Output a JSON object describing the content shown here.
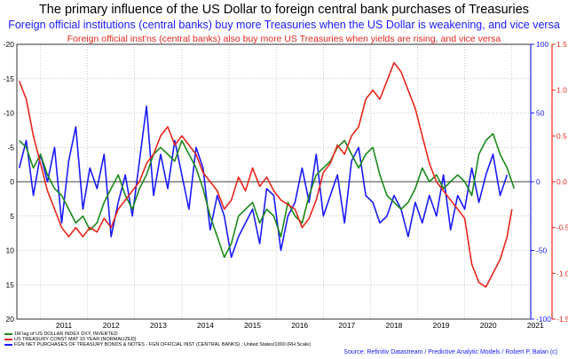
{
  "chart_data": {
    "type": "line",
    "title": "The primary influence of the US Dollar to foreign central bank purchases of Treasuries",
    "subtitle": "Foreign official institutions (central banks) buy more Treasuries when the US Dollar is weakening, and vice versa",
    "subtitle2": "Foreign official inst'ns (central banks) also buy more US Treasuries when yields are rising, and vice versa",
    "x_tick_labels": [
      "2011",
      "2012",
      "2013",
      "2014",
      "2015",
      "2016",
      "2017",
      "2018",
      "2019",
      "2020",
      "2021"
    ],
    "xlim": [
      2010.5,
      2021.4
    ],
    "left_axis": {
      "ticks": [
        -20,
        -15,
        -10,
        -5,
        0,
        5,
        10,
        15,
        20
      ],
      "ylim": [
        -20,
        20
      ],
      "inverted": true,
      "tick_labels": [
        "-20",
        "-15",
        "-10",
        "-5",
        "0",
        "5",
        "10",
        "15",
        "20"
      ]
    },
    "right_axis_blue": {
      "ticks": [
        100,
        50,
        0,
        -50,
        -100
      ],
      "ylim": [
        -100,
        100
      ],
      "color": "#1a1aff",
      "tick_labels": [
        "100",
        "50",
        "0",
        "-50",
        "-100"
      ]
    },
    "right_axis_red": {
      "ticks": [
        1.5,
        1,
        0.5,
        0,
        -0.5,
        -1,
        -1.5
      ],
      "ylim": [
        -1.5,
        1.5
      ],
      "color": "#e8251b",
      "tick_labels": [
        "1.5",
        "1.0",
        "0.5",
        "0.0",
        "-0.5",
        "-1.0",
        "-1.5"
      ]
    },
    "grid": true,
    "series": [
      {
        "name": "1M lag of US DOLLAR INDEX DXY, INVERTED",
        "color": "#1a8a1a",
        "axis": "left",
        "x": [
          2010.55,
          2010.7,
          2010.85,
          2011.0,
          2011.15,
          2011.3,
          2011.45,
          2011.6,
          2011.75,
          2011.9,
          2012.05,
          2012.2,
          2012.35,
          2012.5,
          2012.65,
          2012.8,
          2012.95,
          2013.1,
          2013.25,
          2013.4,
          2013.55,
          2013.7,
          2013.85,
          2014.0,
          2014.15,
          2014.3,
          2014.45,
          2014.6,
          2014.75,
          2014.9,
          2015.05,
          2015.2,
          2015.35,
          2015.5,
          2015.65,
          2015.8,
          2015.95,
          2016.1,
          2016.25,
          2016.4,
          2016.55,
          2016.7,
          2016.85,
          2017.0,
          2017.15,
          2017.3,
          2017.45,
          2017.6,
          2017.75,
          2017.9,
          2018.05,
          2018.2,
          2018.35,
          2018.5,
          2018.65,
          2018.8,
          2018.95,
          2019.1,
          2019.25,
          2019.4,
          2019.55,
          2019.7,
          2019.85,
          2020.0,
          2020.15,
          2020.3,
          2020.45,
          2020.6,
          2020.75,
          2020.9,
          2021.05
        ],
        "y": [
          -6,
          -5,
          -2,
          -4,
          -1,
          1,
          2,
          4,
          6,
          5,
          7,
          6,
          3,
          1,
          -1,
          2,
          4,
          1,
          -1,
          -4,
          -5,
          -4,
          -3,
          -6,
          -4,
          -2,
          1,
          5,
          8,
          11,
          9,
          5,
          4,
          3,
          6,
          4,
          5,
          8,
          3,
          5,
          6,
          2,
          -1,
          -2,
          -3,
          -5,
          -6,
          -4,
          -2,
          -4,
          -5,
          -1,
          2,
          3,
          4,
          3,
          1,
          -2,
          0,
          -1,
          1,
          0,
          -1,
          0,
          2,
          -4,
          -6,
          -7,
          -4,
          -2,
          1
        ]
      },
      {
        "name": "US TREASURY CONST MAT 10 YEAR (NORMALIZED)",
        "color": "#e8251b",
        "axis": "right_red",
        "x": [
          2010.55,
          2010.7,
          2010.85,
          2011.0,
          2011.15,
          2011.3,
          2011.45,
          2011.6,
          2011.75,
          2011.9,
          2012.05,
          2012.2,
          2012.35,
          2012.5,
          2012.65,
          2012.8,
          2012.95,
          2013.1,
          2013.25,
          2013.4,
          2013.55,
          2013.7,
          2013.85,
          2014.0,
          2014.15,
          2014.3,
          2014.45,
          2014.6,
          2014.75,
          2014.9,
          2015.05,
          2015.2,
          2015.35,
          2015.5,
          2015.65,
          2015.8,
          2015.95,
          2016.1,
          2016.25,
          2016.4,
          2016.55,
          2016.7,
          2016.85,
          2017.0,
          2017.15,
          2017.3,
          2017.45,
          2017.6,
          2017.75,
          2017.9,
          2018.05,
          2018.2,
          2018.35,
          2018.5,
          2018.65,
          2018.8,
          2018.95,
          2019.1,
          2019.25,
          2019.4,
          2019.55,
          2019.7,
          2019.85,
          2020.0,
          2020.15,
          2020.3,
          2020.45,
          2020.6,
          2020.75,
          2020.9,
          2021.0
        ],
        "y": [
          1.1,
          0.9,
          0.5,
          0.2,
          -0.1,
          -0.3,
          -0.5,
          -0.6,
          -0.5,
          -0.6,
          -0.5,
          -0.55,
          -0.4,
          -0.5,
          -0.3,
          -0.2,
          -0.1,
          0.0,
          0.2,
          0.3,
          0.5,
          0.6,
          0.4,
          0.5,
          0.4,
          0.3,
          0.1,
          0.0,
          -0.1,
          -0.3,
          -0.2,
          0.05,
          -0.1,
          0.15,
          -0.05,
          0.05,
          -0.1,
          -0.2,
          -0.25,
          -0.3,
          -0.5,
          -0.4,
          -0.2,
          0.1,
          0.2,
          0.4,
          0.3,
          0.5,
          0.6,
          0.9,
          1.0,
          0.9,
          1.1,
          1.3,
          1.2,
          1.0,
          0.8,
          0.5,
          0.2,
          0.0,
          -0.1,
          -0.2,
          -0.3,
          -0.4,
          -0.9,
          -1.1,
          -1.15,
          -1.0,
          -0.85,
          -0.6,
          -0.3
        ]
      },
      {
        "name": "FGN NET PURCHASES OF TREASURY BONDS & NOTES - FGN OFFICIAL INST (CENTRAL BANKS) : United States/1000 (RH Scale)",
        "color": "#1a1aff",
        "axis": "right_blue",
        "x": [
          2010.55,
          2010.7,
          2010.85,
          2011.0,
          2011.15,
          2011.3,
          2011.45,
          2011.6,
          2011.75,
          2011.9,
          2012.05,
          2012.2,
          2012.35,
          2012.5,
          2012.65,
          2012.8,
          2012.95,
          2013.1,
          2013.25,
          2013.4,
          2013.55,
          2013.7,
          2013.85,
          2014.0,
          2014.15,
          2014.3,
          2014.45,
          2014.6,
          2014.75,
          2014.9,
          2015.05,
          2015.2,
          2015.35,
          2015.5,
          2015.65,
          2015.8,
          2015.95,
          2016.1,
          2016.25,
          2016.4,
          2016.55,
          2016.7,
          2016.85,
          2017.0,
          2017.15,
          2017.3,
          2017.45,
          2017.6,
          2017.75,
          2017.9,
          2018.05,
          2018.2,
          2018.35,
          2018.5,
          2018.65,
          2018.8,
          2018.95,
          2019.1,
          2019.25,
          2019.4,
          2019.55,
          2019.7,
          2019.85,
          2020.0,
          2020.15,
          2020.3,
          2020.45,
          2020.6,
          2020.75,
          2020.9
        ],
        "y": [
          10,
          30,
          -10,
          20,
          0,
          25,
          -30,
          15,
          40,
          -20,
          10,
          -5,
          20,
          -40,
          -15,
          5,
          -25,
          15,
          55,
          -10,
          20,
          -5,
          30,
          5,
          -20,
          25,
          10,
          -35,
          -10,
          -25,
          -55,
          -40,
          -30,
          -20,
          -45,
          -5,
          -10,
          -50,
          -25,
          -15,
          10,
          -15,
          20,
          -25,
          -10,
          5,
          -30,
          15,
          25,
          -10,
          -15,
          -30,
          -25,
          -10,
          -20,
          -40,
          -15,
          -30,
          -10,
          -25,
          5,
          -35,
          -10,
          -20,
          10,
          -15,
          5,
          20,
          -10,
          5
        ]
      }
    ]
  },
  "legend": [
    {
      "text": "1M lag of US DOLLAR INDEX DXY, INVERTED",
      "color": "#1a8a1a"
    },
    {
      "text": "US TREASURY CONST MAT 10 YEAR (NORMALIZED)",
      "color": "#e8251b"
    },
    {
      "text": "FGN NET PURCHASES OF TREASURY BONDS & NOTES - FGN OFFICIAL INST (CENTRAL BANKS) : United States/1000 (RH Scale)",
      "color": "#1a1aff"
    }
  ],
  "source": "Source: Refinitiv Datastream / Predictive Analytic Models / Robert P, Balan  (c)"
}
